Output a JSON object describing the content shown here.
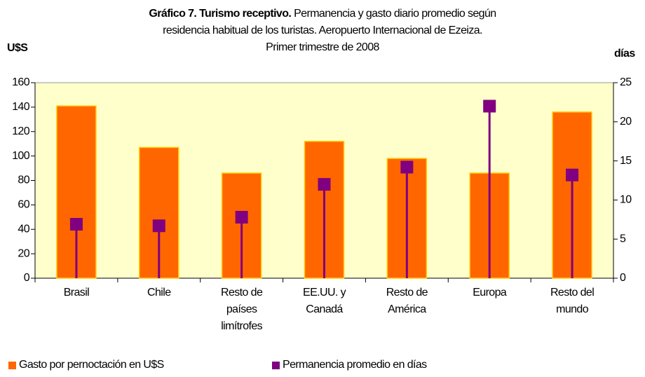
{
  "chart_data": {
    "type": "bar",
    "title": "Gráfico 7. Turismo receptivo.",
    "subtitle": [
      "Permanencia y gasto diario promedio según",
      "residencia habitual de los turistas. Aeropuerto Internacional de Ezeiza.",
      "Primer trimestre de 2008"
    ],
    "y_label": "U$S",
    "y2_label": "días",
    "categories": [
      "Brasil",
      "Chile",
      "Resto de países limítrofes",
      "EE.UU. y Canadá",
      "Resto de América",
      "Europa",
      "Resto del mundo"
    ],
    "series": [
      {
        "name": "Gasto por pernoctación en U$S",
        "color": "#ff6600",
        "type": "bar",
        "values": [
          141,
          107,
          86,
          112,
          98,
          86,
          136
        ]
      },
      {
        "name": "Permanencia promedio en días",
        "color": "#800080",
        "type": "lollipop",
        "axis": "y2",
        "values": [
          6.9,
          6.7,
          7.8,
          12.0,
          14.2,
          22.0,
          13.2
        ]
      }
    ],
    "ylim": [
      0,
      160
    ],
    "yticks": [
      0,
      20,
      40,
      60,
      80,
      100,
      120,
      140,
      160
    ],
    "y2lim": [
      0,
      25
    ],
    "y2ticks": [
      0,
      5,
      10,
      15,
      20,
      25
    ],
    "background": "#ffffcc"
  }
}
